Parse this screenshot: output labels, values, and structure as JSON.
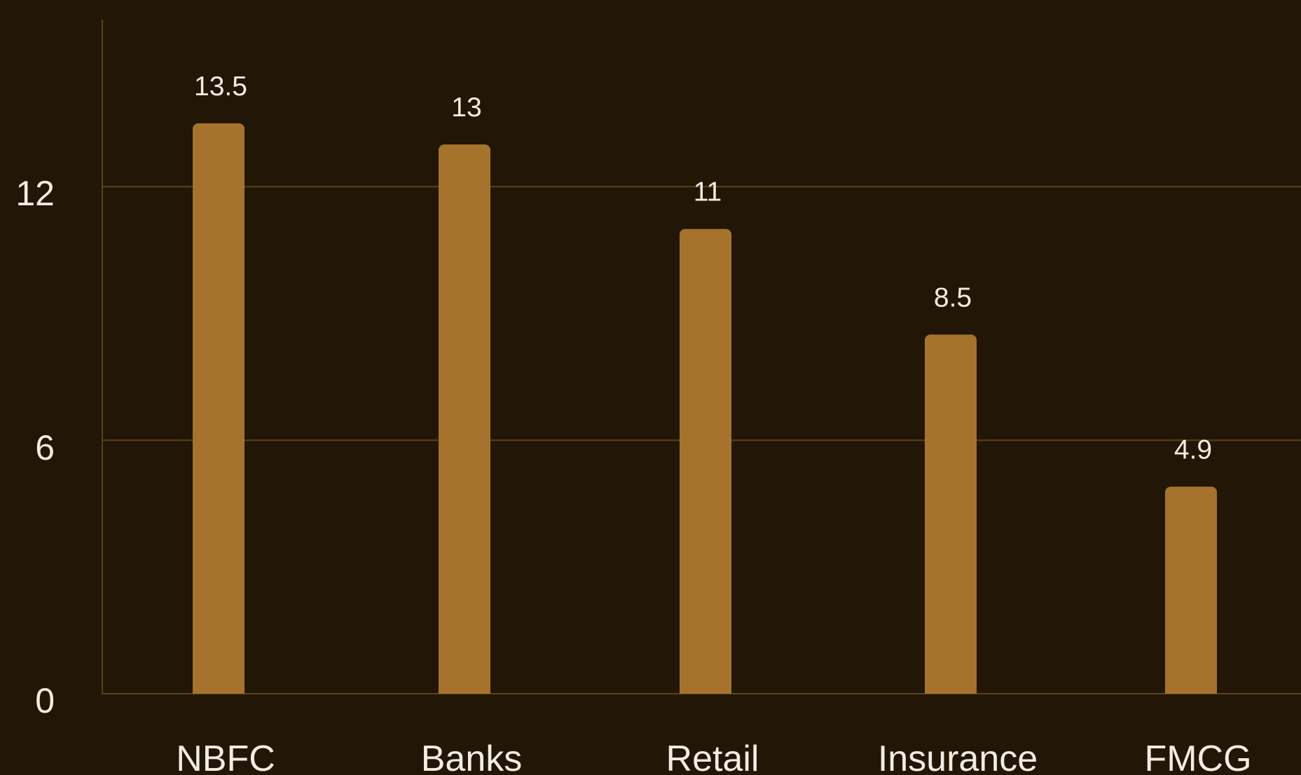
{
  "chart_data": {
    "type": "bar",
    "title": "",
    "xlabel": "",
    "ylabel": "",
    "categories": [
      "NBFC",
      "Banks",
      "Retail",
      "Insurance",
      "FMCG"
    ],
    "values": [
      13.5,
      13,
      11,
      8.5,
      4.9
    ],
    "data_labels": [
      "13.5",
      "13",
      "11",
      "8.5",
      "4.9"
    ],
    "ylim": [
      0,
      16
    ],
    "yticks": [
      0,
      6,
      12
    ],
    "ytick_labels": [
      "0",
      "6",
      "12"
    ],
    "grid": true,
    "legend": "none",
    "colors": {
      "background": "#221606",
      "bar": "#a5732b",
      "grid": "#5c4217",
      "axis": "#5c4217",
      "text": "#f2ece2"
    }
  }
}
